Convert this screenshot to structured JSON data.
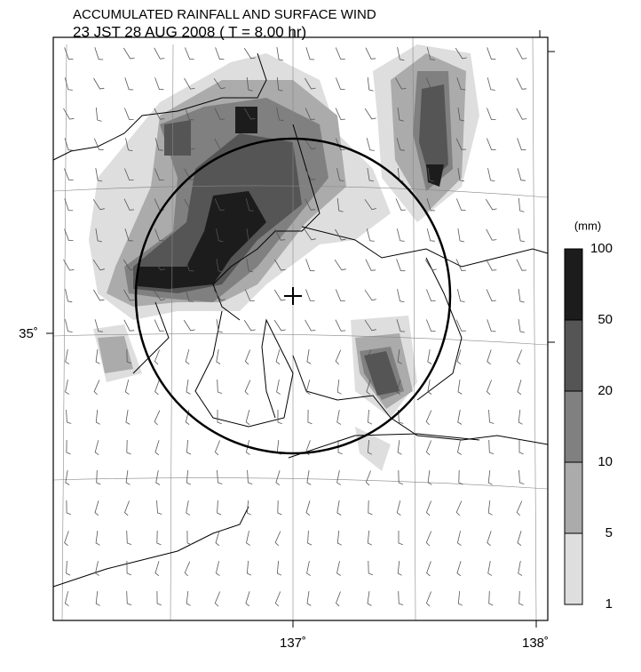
{
  "header": {
    "title": "ACCUMULATED RAINFALL AND SURFACE WIND",
    "subtitle": "23 JST 28 AUG 2008 ( T =  8.00 hr)"
  },
  "axes": {
    "x_labels": [
      "137˚",
      "138˚"
    ],
    "y_labels": [
      "35˚"
    ]
  },
  "legend": {
    "unit": "(mm)",
    "levels": [
      "100",
      "50",
      "20",
      "10",
      "5",
      "1"
    ],
    "colors": [
      "#1c1c1c",
      "#555555",
      "#808080",
      "#ababab",
      "#dedede"
    ]
  }
}
